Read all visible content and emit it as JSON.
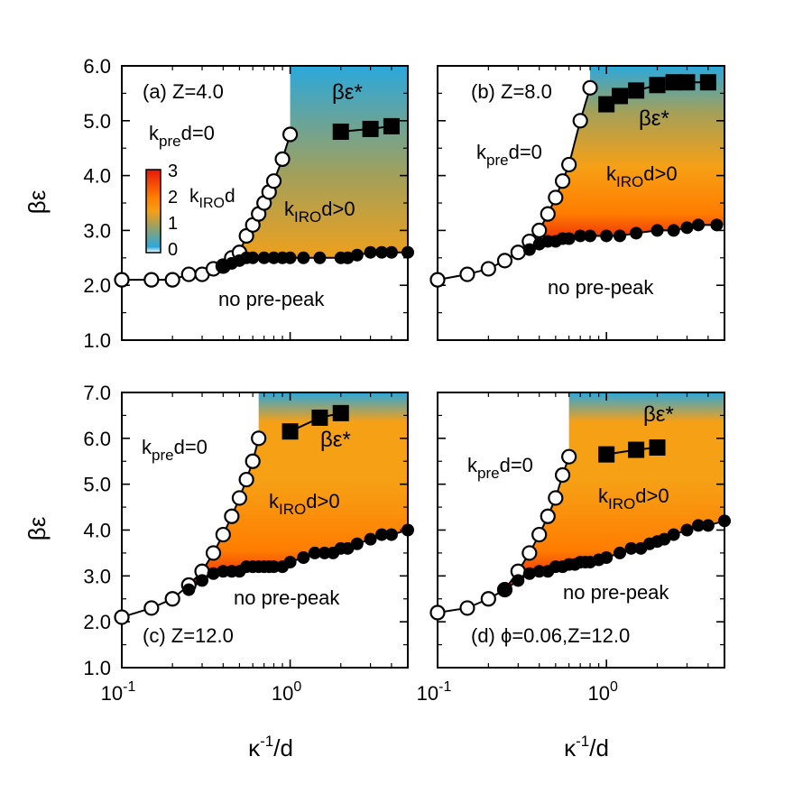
{
  "colorbar": {
    "label_main": "k",
    "label_sub": "IRO",
    "label_tail": "d",
    "ticks": [
      "0",
      "1",
      "2",
      "3"
    ],
    "colors": {
      "c0": "#ffffff",
      "c02": "#2ba8dc",
      "c1": "#a3a05a",
      "c15": "#f6a016",
      "c2": "#ff7d00",
      "c3": "#e8160b"
    }
  },
  "axis_labels": {
    "ylabel": "βε",
    "xlabel_main": "κ",
    "xlabel_sup": "-1",
    "xlabel_tail": "/d"
  },
  "chart_data": [
    {
      "type": "scatter",
      "panel": "a",
      "title": "(a) Z=4.0",
      "xscale": "log",
      "xlim": [
        0.1,
        5
      ],
      "ylim": [
        1.0,
        6.0
      ],
      "yticks": [
        "1.0",
        "2.0",
        "3.0",
        "4.0",
        "5.0",
        "6.0"
      ],
      "labels": {
        "kpre": {
          "main": "k",
          "sub": "pre",
          "tail": "d=0"
        },
        "kiro": {
          "main": "k",
          "sub": "IRO",
          "tail": "d>0"
        },
        "nopre": "no pre-peak",
        "beps": "βε*"
      },
      "open_circles": {
        "x": [
          0.1,
          0.15,
          0.2,
          0.25,
          0.3,
          0.35,
          0.4,
          0.45,
          0.5,
          0.55,
          0.6,
          0.65,
          0.7,
          0.75,
          0.8,
          0.9,
          1.0
        ],
        "y": [
          2.1,
          2.1,
          2.1,
          2.2,
          2.2,
          2.3,
          2.35,
          2.5,
          2.6,
          2.9,
          3.1,
          3.3,
          3.5,
          3.7,
          3.9,
          4.3,
          4.75
        ]
      },
      "filled_circles": {
        "x": [
          0.4,
          0.45,
          0.5,
          0.55,
          0.6,
          0.7,
          0.8,
          0.9,
          1.0,
          1.2,
          1.5,
          2.0,
          2.2,
          2.5,
          3.0,
          3.5,
          4.0,
          5.0
        ],
        "y": [
          2.35,
          2.4,
          2.45,
          2.5,
          2.5,
          2.5,
          2.5,
          2.5,
          2.5,
          2.5,
          2.5,
          2.5,
          2.5,
          2.55,
          2.6,
          2.6,
          2.6,
          2.6
        ]
      },
      "squares": {
        "x": [
          2.0,
          3.0,
          4.0
        ],
        "y": [
          4.8,
          4.85,
          4.9
        ]
      }
    },
    {
      "type": "scatter",
      "panel": "b",
      "title": "(b) Z=8.0",
      "xscale": "log",
      "xlim": [
        0.1,
        5
      ],
      "ylim": [
        1.0,
        6.0
      ],
      "yticks": [
        "1.0",
        "2.0",
        "3.0",
        "4.0",
        "5.0",
        "6.0"
      ],
      "labels": {
        "kpre": {
          "main": "k",
          "sub": "pre",
          "tail": "d=0"
        },
        "kiro": {
          "main": "k",
          "sub": "IRO",
          "tail": "d>0"
        },
        "nopre": "no pre-peak",
        "beps": "βε*"
      },
      "open_circles": {
        "x": [
          0.1,
          0.15,
          0.2,
          0.25,
          0.3,
          0.35,
          0.4,
          0.45,
          0.5,
          0.55,
          0.6,
          0.7,
          0.8
        ],
        "y": [
          2.1,
          2.2,
          2.3,
          2.45,
          2.6,
          2.8,
          3.0,
          3.3,
          3.6,
          3.9,
          4.2,
          5.0,
          5.6
        ]
      },
      "filled_circles": {
        "x": [
          0.35,
          0.4,
          0.45,
          0.5,
          0.55,
          0.6,
          0.7,
          0.8,
          1.0,
          1.2,
          1.5,
          2.0,
          2.5,
          3.0,
          3.5,
          4.5
        ],
        "y": [
          2.65,
          2.75,
          2.8,
          2.8,
          2.85,
          2.85,
          2.9,
          2.9,
          2.9,
          2.9,
          2.95,
          3.0,
          3.0,
          3.05,
          3.1,
          3.1
        ]
      },
      "squares": {
        "x": [
          1.0,
          1.2,
          1.5,
          2.0,
          2.5,
          3.0,
          4.0
        ],
        "y": [
          5.3,
          5.45,
          5.55,
          5.65,
          5.7,
          5.7,
          5.7
        ]
      }
    },
    {
      "type": "scatter",
      "panel": "c",
      "title": "(c) Z=12.0",
      "xscale": "log",
      "xlim": [
        0.1,
        5
      ],
      "ylim": [
        1.0,
        7.0
      ],
      "xticks": [
        "10",
        "10"
      ],
      "yticks": [
        "1.0",
        "2.0",
        "3.0",
        "4.0",
        "5.0",
        "6.0",
        "7.0"
      ],
      "labels": {
        "kpre": {
          "main": "k",
          "sub": "pre",
          "tail": "d=0"
        },
        "kiro": {
          "main": "k",
          "sub": "IRO",
          "tail": "d>0"
        },
        "nopre": "no pre-peak",
        "beps": "βε*"
      },
      "open_circles": {
        "x": [
          0.1,
          0.15,
          0.2,
          0.25,
          0.3,
          0.35,
          0.4,
          0.45,
          0.5,
          0.55,
          0.6,
          0.65
        ],
        "y": [
          2.1,
          2.3,
          2.5,
          2.8,
          3.1,
          3.5,
          3.9,
          4.3,
          4.7,
          5.1,
          5.5,
          6.0
        ]
      },
      "filled_circles": {
        "x": [
          0.25,
          0.3,
          0.35,
          0.4,
          0.45,
          0.5,
          0.55,
          0.6,
          0.65,
          0.7,
          0.75,
          0.8,
          0.9,
          1.0,
          1.2,
          1.4,
          1.6,
          1.8,
          2.0,
          2.2,
          2.5,
          3.0,
          3.5,
          4.0,
          5.0
        ],
        "y": [
          2.7,
          2.9,
          3.05,
          3.1,
          3.1,
          3.1,
          3.2,
          3.2,
          3.2,
          3.2,
          3.2,
          3.2,
          3.2,
          3.3,
          3.4,
          3.5,
          3.5,
          3.5,
          3.6,
          3.6,
          3.7,
          3.8,
          3.9,
          3.9,
          4.0
        ]
      },
      "squares": {
        "x": [
          1.0,
          1.5,
          2.0
        ],
        "y": [
          6.15,
          6.45,
          6.55
        ]
      }
    },
    {
      "type": "scatter",
      "panel": "d",
      "title": "(d) ϕ=0.06,Z=12.0",
      "xscale": "log",
      "xlim": [
        0.1,
        5
      ],
      "ylim": [
        1.0,
        7.0
      ],
      "xticks": [
        "10",
        "10"
      ],
      "yticks": [
        "1.0",
        "2.0",
        "3.0",
        "4.0",
        "5.0",
        "6.0",
        "7.0"
      ],
      "labels": {
        "kpre": {
          "main": "k",
          "sub": "pre",
          "tail": "d=0"
        },
        "kiro": {
          "main": "k",
          "sub": "IRO",
          "tail": "d>0"
        },
        "nopre": "no pre-peak",
        "beps": "βε*"
      },
      "open_circles": {
        "x": [
          0.1,
          0.15,
          0.2,
          0.25,
          0.3,
          0.35,
          0.4,
          0.45,
          0.5,
          0.55,
          0.6
        ],
        "y": [
          2.2,
          2.3,
          2.5,
          2.7,
          3.1,
          3.5,
          3.9,
          4.3,
          4.7,
          5.2,
          5.6
        ]
      },
      "filled_circles": {
        "x": [
          0.25,
          0.3,
          0.35,
          0.4,
          0.45,
          0.5,
          0.55,
          0.6,
          0.65,
          0.7,
          0.75,
          0.8,
          0.9,
          1.0,
          1.2,
          1.4,
          1.6,
          1.8,
          2.0,
          2.2,
          2.5,
          3.0,
          3.5,
          4.0,
          5.0
        ],
        "y": [
          2.7,
          2.9,
          3.05,
          3.1,
          3.1,
          3.2,
          3.2,
          3.25,
          3.25,
          3.3,
          3.3,
          3.3,
          3.35,
          3.4,
          3.5,
          3.6,
          3.6,
          3.7,
          3.75,
          3.8,
          3.9,
          4.0,
          4.1,
          4.1,
          4.2
        ]
      },
      "squares": {
        "x": [
          1.0,
          1.5,
          2.0
        ],
        "y": [
          5.65,
          5.75,
          5.8
        ]
      }
    }
  ]
}
